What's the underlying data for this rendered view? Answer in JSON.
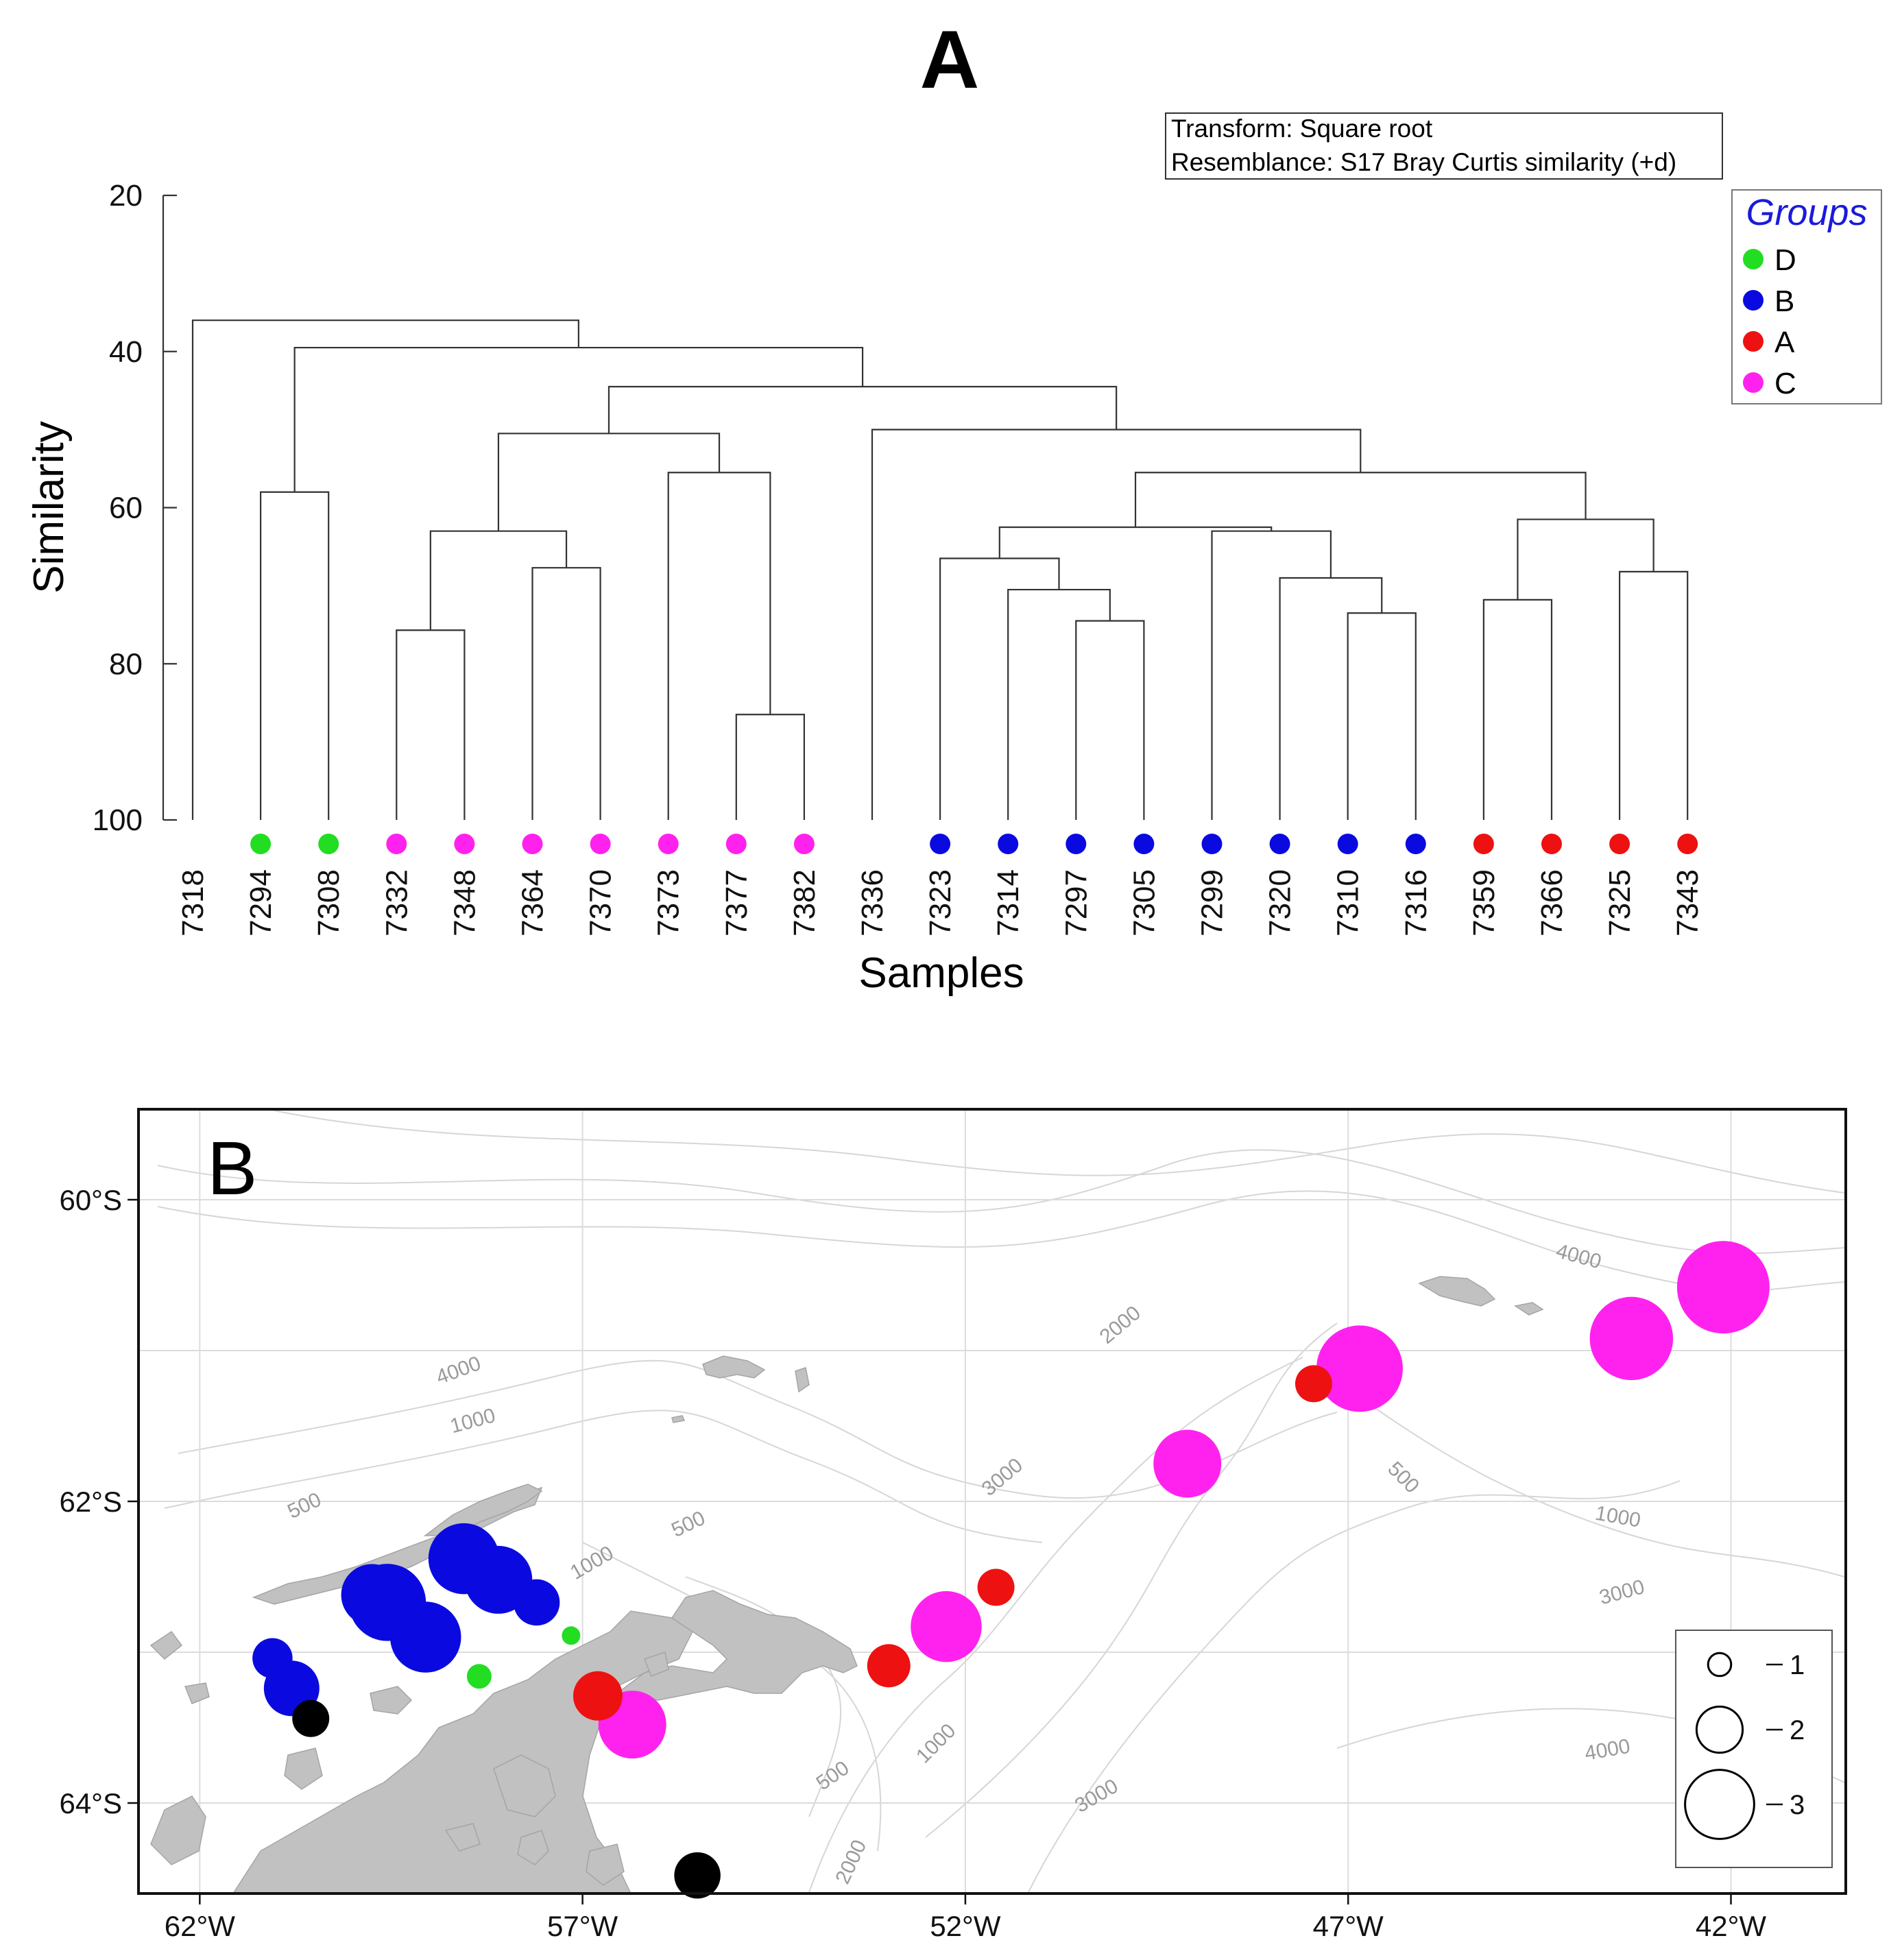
{
  "chart_data": [
    {
      "type": "dendrogram",
      "panel_label": "A",
      "info_box": [
        "Transform: Square root",
        "Resemblance: S17 Bray Curtis similarity (+d)"
      ],
      "ylabel": "Similarity",
      "xlabel": "Samples",
      "y_ticks": [
        "20",
        "40",
        "60",
        "80",
        "100"
      ],
      "ylim": [
        20,
        100
      ],
      "legend": {
        "title": "Groups",
        "entries": [
          {
            "label": "D",
            "color": "#22dd22"
          },
          {
            "label": "B",
            "color": "#0a0ae0"
          },
          {
            "label": "A",
            "color": "#ee1111"
          },
          {
            "label": "C",
            "color": "#ff22ee"
          }
        ]
      },
      "leaves": [
        {
          "sample": "7318",
          "group": ""
        },
        {
          "sample": "7294",
          "group": "D"
        },
        {
          "sample": "7308",
          "group": "D"
        },
        {
          "sample": "7332",
          "group": "C"
        },
        {
          "sample": "7348",
          "group": "C"
        },
        {
          "sample": "7364",
          "group": "C"
        },
        {
          "sample": "7370",
          "group": "C"
        },
        {
          "sample": "7373",
          "group": "C"
        },
        {
          "sample": "7377",
          "group": "C"
        },
        {
          "sample": "7382",
          "group": "C"
        },
        {
          "sample": "7336",
          "group": ""
        },
        {
          "sample": "7323",
          "group": "B"
        },
        {
          "sample": "7314",
          "group": "B"
        },
        {
          "sample": "7297",
          "group": "B"
        },
        {
          "sample": "7305",
          "group": "B"
        },
        {
          "sample": "7299",
          "group": "B"
        },
        {
          "sample": "7320",
          "group": "B"
        },
        {
          "sample": "7310",
          "group": "B"
        },
        {
          "sample": "7316",
          "group": "B"
        },
        {
          "sample": "7359",
          "group": "A"
        },
        {
          "sample": "7366",
          "group": "A"
        },
        {
          "sample": "7325",
          "group": "A"
        },
        {
          "sample": "7343",
          "group": "A"
        }
      ],
      "merges": [
        {
          "a": "7377",
          "b": "7382",
          "similarity": 86.5
        },
        {
          "a": "7297",
          "b": "7305",
          "similarity": 74.5
        },
        {
          "a": "7332",
          "b": "7348",
          "similarity": 75.7
        },
        {
          "a": "7310",
          "b": "7316",
          "similarity": 73.5
        },
        {
          "a": "7359",
          "b": "7366",
          "similarity": 71.8
        },
        {
          "a": "7314",
          "b": [
            "7297",
            "7305"
          ],
          "similarity": 70.5
        },
        {
          "a": "7320",
          "b": [
            "7310",
            "7316"
          ],
          "similarity": 69.0
        },
        {
          "a": "7325",
          "b": "7343",
          "similarity": 68.2
        },
        {
          "a": "7364",
          "b": "7370",
          "similarity": 67.7
        },
        {
          "a": "7323",
          "b": [
            "7314",
            "7297",
            "7305"
          ],
          "similarity": 66.5
        },
        {
          "a": [
            "7332",
            "7348"
          ],
          "b": [
            "7364",
            "7370"
          ],
          "similarity": 63.0
        },
        {
          "a": "7299",
          "b": [
            "7320",
            "7310",
            "7316"
          ],
          "similarity": 63.0
        },
        {
          "a": [
            "7323",
            "7314",
            "7297",
            "7305"
          ],
          "b": [
            "7299",
            "7320",
            "7310",
            "7316"
          ],
          "similarity": 62.5
        },
        {
          "a": [
            "7359",
            "7366"
          ],
          "b": [
            "7325",
            "7343"
          ],
          "similarity": 61.5
        },
        {
          "a": "7294",
          "b": "7308",
          "similarity": 58.0
        },
        {
          "a": "7373",
          "b": [
            "7377",
            "7382"
          ],
          "similarity": 55.5
        },
        {
          "a": "group-B-cluster",
          "b": "group-A-cluster",
          "similarity": 55.5
        },
        {
          "a": "7336",
          "b": "B+A-cluster",
          "similarity": 50.0
        },
        {
          "a": "7332-7370 cluster",
          "b": "7373-7382 cluster",
          "similarity": 50.5
        },
        {
          "a": "C cluster",
          "b": "7336+B+A cluster",
          "similarity": 44.5
        },
        {
          "a": "D cluster",
          "b": "rest",
          "similarity": 39.5
        },
        {
          "a": "7318",
          "b": "all others",
          "similarity": 36.0
        }
      ]
    },
    {
      "type": "bubble-map",
      "panel_label": "B",
      "lon_ticks": [
        "62°W",
        "57°W",
        "52°W",
        "47°W",
        "42°W"
      ],
      "lat_ticks": [
        "60°S",
        "62°S",
        "64°S"
      ],
      "lon_range": [
        -62.8,
        -40.5
      ],
      "lat_range": [
        -59.4,
        -64.6
      ],
      "contour_labels": [
        "4000",
        "2000",
        "4000",
        "1000",
        "500",
        "3000",
        "500",
        "1000",
        "500",
        "1000",
        "3000",
        "4000",
        "500",
        "1000",
        "3000",
        "2000"
      ],
      "size_legend": [
        "1",
        "2",
        "3"
      ],
      "points": [
        {
          "lon": -42.1,
          "lat": -60.58,
          "size": 3.0,
          "group": "C"
        },
        {
          "lon": -43.3,
          "lat": -60.92,
          "size": 2.7,
          "group": "C"
        },
        {
          "lon": -46.85,
          "lat": -61.12,
          "size": 2.8,
          "group": "C"
        },
        {
          "lon": -47.45,
          "lat": -61.22,
          "size": 1.2,
          "group": "A"
        },
        {
          "lon": -49.1,
          "lat": -61.75,
          "size": 2.2,
          "group": "C"
        },
        {
          "lon": -51.6,
          "lat": -62.57,
          "size": 1.2,
          "group": "A"
        },
        {
          "lon": -52.25,
          "lat": -62.83,
          "size": 2.3,
          "group": "C"
        },
        {
          "lon": -53.0,
          "lat": -63.09,
          "size": 1.4,
          "group": "A"
        },
        {
          "lon": -56.35,
          "lat": -63.48,
          "size": 2.2,
          "group": "C"
        },
        {
          "lon": -56.8,
          "lat": -63.29,
          "size": 1.6,
          "group": "A"
        },
        {
          "lon": -57.15,
          "lat": -62.89,
          "size": 0.6,
          "group": "D"
        },
        {
          "lon": -58.35,
          "lat": -63.16,
          "size": 0.8,
          "group": "D"
        },
        {
          "lon": -57.6,
          "lat": -62.67,
          "size": 1.5,
          "group": "B"
        },
        {
          "lon": -58.1,
          "lat": -62.52,
          "size": 2.2,
          "group": "B"
        },
        {
          "lon": -58.55,
          "lat": -62.38,
          "size": 2.3,
          "group": "B"
        },
        {
          "lon": -59.05,
          "lat": -62.9,
          "size": 2.3,
          "group": "B"
        },
        {
          "lon": -59.55,
          "lat": -62.67,
          "size": 2.5,
          "group": "B"
        },
        {
          "lon": -59.75,
          "lat": -62.62,
          "size": 2.0,
          "group": "B"
        },
        {
          "lon": -60.8,
          "lat": -63.24,
          "size": 1.8,
          "group": "B"
        },
        {
          "lon": -61.05,
          "lat": -63.04,
          "size": 1.3,
          "group": "B"
        },
        {
          "lon": -60.55,
          "lat": -63.44,
          "size": 1.2,
          "group": ""
        },
        {
          "lon": -55.5,
          "lat": -64.48,
          "size": 1.5,
          "group": ""
        }
      ]
    }
  ],
  "colors": {
    "D": "#22dd22",
    "B": "#0a0ae0",
    "A": "#ee1111",
    "C": "#ff22ee",
    "unassigned": "#000000",
    "land": "#c1c1c1",
    "contour": "#d4d4d4"
  }
}
